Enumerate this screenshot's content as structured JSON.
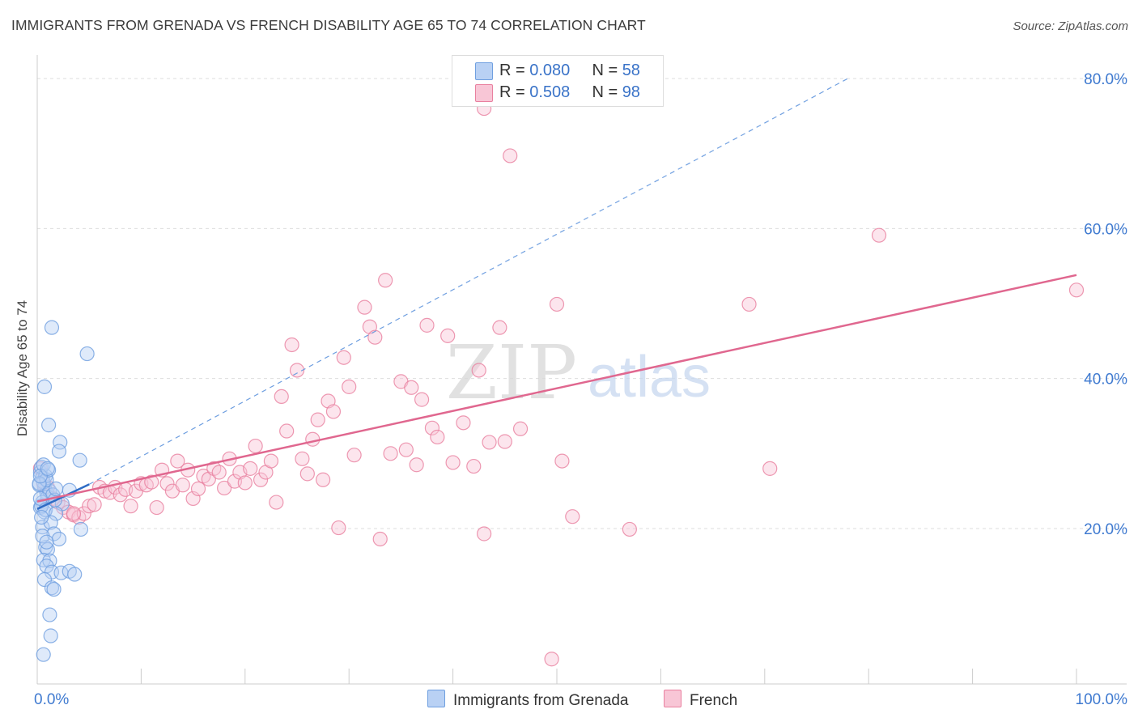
{
  "title": "IMMIGRANTS FROM GRENADA VS FRENCH DISABILITY AGE 65 TO 74 CORRELATION CHART",
  "source": "Source: ZipAtlas.com",
  "watermark": {
    "zip": "ZIP",
    "atlas": "atlas"
  },
  "colors": {
    "blue": "#6f9fe0",
    "blue_fill": "#b9d1f4",
    "blue_line": "#2f6cc5",
    "pink": "#e9809f",
    "pink_fill": "#f8c6d6",
    "pink_line": "#e0678f",
    "axis_text": "#3f7ad0",
    "grid": "#dddddd"
  },
  "legend_top": [
    {
      "r_label": "R = ",
      "r_value": "0.080",
      "n_label": "N = ",
      "n_value": "58"
    },
    {
      "r_label": "R = ",
      "r_value": "0.508",
      "n_label": "N = ",
      "n_value": "98"
    }
  ],
  "chart_data": {
    "type": "scatter",
    "title": "IMMIGRANTS FROM GRENADA VS FRENCH DISABILITY AGE 65 TO 74 CORRELATION CHART",
    "xlabel": "",
    "ylabel": "Disability Age 65 to 74",
    "xlim": [
      0,
      100
    ],
    "ylim": [
      0,
      85
    ],
    "x_tick_labels": [
      "0.0%",
      "100.0%"
    ],
    "y_ticks": [
      20,
      40,
      60,
      80
    ],
    "y_tick_labels": [
      "20.0%",
      "40.0%",
      "60.0%",
      "80.0%"
    ],
    "grid": true,
    "legend_position": "top-center",
    "series": [
      {
        "name": "Immigrants from Grenada",
        "color": "#6f9fe0",
        "points": [
          [
            0.3,
            27.5
          ],
          [
            0.5,
            26.8
          ],
          [
            0.7,
            25.5
          ],
          [
            0.9,
            24.8
          ],
          [
            0.4,
            28.2
          ],
          [
            0.6,
            26.2
          ],
          [
            0.8,
            27.0
          ],
          [
            1.0,
            24.2
          ],
          [
            0.2,
            25.8
          ],
          [
            0.5,
            23.5
          ],
          [
            0.3,
            22.8
          ],
          [
            0.7,
            22.2
          ],
          [
            1.2,
            25.0
          ],
          [
            1.5,
            24.5
          ],
          [
            0.6,
            28.5
          ],
          [
            0.4,
            23.0
          ],
          [
            0.9,
            26.5
          ],
          [
            1.1,
            27.8
          ],
          [
            0.3,
            24.0
          ],
          [
            0.8,
            22.5
          ],
          [
            1.4,
            46.8
          ],
          [
            4.8,
            43.3
          ],
          [
            0.7,
            38.9
          ],
          [
            1.1,
            33.8
          ],
          [
            4.1,
            29.1
          ],
          [
            2.2,
            31.5
          ],
          [
            2.1,
            30.3
          ],
          [
            2.4,
            23.3
          ],
          [
            3.1,
            25.1
          ],
          [
            1.8,
            22.0
          ],
          [
            0.5,
            20.2
          ],
          [
            1.3,
            20.8
          ],
          [
            1.6,
            19.3
          ],
          [
            2.1,
            18.6
          ],
          [
            4.2,
            19.9
          ],
          [
            0.8,
            17.5
          ],
          [
            1.0,
            17.2
          ],
          [
            0.6,
            15.8
          ],
          [
            1.2,
            15.7
          ],
          [
            0.9,
            15.0
          ],
          [
            1.4,
            14.2
          ],
          [
            2.3,
            14.1
          ],
          [
            3.1,
            14.3
          ],
          [
            3.6,
            13.9
          ],
          [
            0.7,
            13.2
          ],
          [
            1.4,
            12.1
          ],
          [
            1.6,
            11.9
          ],
          [
            1.2,
            8.5
          ],
          [
            1.3,
            5.7
          ],
          [
            0.6,
            3.2
          ],
          [
            0.4,
            21.5
          ],
          [
            0.2,
            26.0
          ],
          [
            1.7,
            23.8
          ],
          [
            0.5,
            19.0
          ],
          [
            0.9,
            18.2
          ],
          [
            1.8,
            25.3
          ],
          [
            0.3,
            27.0
          ],
          [
            1.0,
            28.0
          ]
        ],
        "trend_solid": [
          [
            0.0,
            22.6
          ],
          [
            5.0,
            25.9
          ]
        ],
        "trend_dashed": [
          [
            5.0,
            25.9
          ],
          [
            78.0,
            80.0
          ]
        ]
      },
      {
        "name": "French",
        "color": "#e9809f",
        "points": [
          [
            0.3,
            28.0
          ],
          [
            0.6,
            26.0
          ],
          [
            1.0,
            25.5
          ],
          [
            1.5,
            24.0
          ],
          [
            2.0,
            23.5
          ],
          [
            2.5,
            22.8
          ],
          [
            3.0,
            22.2
          ],
          [
            3.5,
            21.8
          ],
          [
            4.0,
            21.5
          ],
          [
            4.5,
            22.0
          ],
          [
            5.0,
            23.0
          ],
          [
            5.5,
            23.2
          ],
          [
            6.0,
            25.5
          ],
          [
            6.5,
            25.0
          ],
          [
            7.0,
            24.8
          ],
          [
            7.5,
            25.5
          ],
          [
            8.0,
            24.5
          ],
          [
            8.5,
            25.2
          ],
          [
            9.0,
            23.0
          ],
          [
            9.5,
            25.0
          ],
          [
            10.0,
            26.0
          ],
          [
            10.5,
            25.8
          ],
          [
            11.0,
            26.2
          ],
          [
            11.5,
            22.8
          ],
          [
            12.0,
            27.8
          ],
          [
            12.5,
            26.0
          ],
          [
            13.0,
            25.0
          ],
          [
            13.5,
            29.0
          ],
          [
            14.0,
            25.8
          ],
          [
            14.5,
            27.8
          ],
          [
            15.0,
            24.0
          ],
          [
            15.5,
            25.3
          ],
          [
            16.0,
            27.0
          ],
          [
            16.5,
            26.6
          ],
          [
            17.0,
            28.0
          ],
          [
            17.5,
            27.5
          ],
          [
            18.0,
            25.4
          ],
          [
            18.5,
            29.3
          ],
          [
            19.0,
            26.3
          ],
          [
            19.5,
            27.5
          ],
          [
            20.0,
            26.1
          ],
          [
            20.5,
            28.0
          ],
          [
            21.0,
            31.0
          ],
          [
            21.5,
            26.5
          ],
          [
            22.0,
            27.5
          ],
          [
            22.5,
            29.0
          ],
          [
            23.0,
            23.5
          ],
          [
            23.5,
            37.6
          ],
          [
            24.0,
            33.0
          ],
          [
            24.5,
            44.5
          ],
          [
            25.0,
            41.1
          ],
          [
            25.5,
            29.3
          ],
          [
            26.0,
            27.3
          ],
          [
            26.5,
            31.9
          ],
          [
            27.0,
            34.5
          ],
          [
            27.5,
            26.5
          ],
          [
            28.0,
            37.0
          ],
          [
            28.5,
            35.6
          ],
          [
            29.0,
            20.1
          ],
          [
            29.5,
            42.8
          ],
          [
            30.0,
            38.9
          ],
          [
            30.5,
            29.8
          ],
          [
            31.5,
            49.5
          ],
          [
            32.0,
            46.9
          ],
          [
            32.5,
            45.5
          ],
          [
            33.0,
            18.6
          ],
          [
            33.5,
            53.1
          ],
          [
            34.0,
            30.0
          ],
          [
            35.0,
            39.6
          ],
          [
            35.5,
            30.5
          ],
          [
            36.0,
            38.8
          ],
          [
            36.5,
            28.5
          ],
          [
            37.0,
            37.2
          ],
          [
            37.5,
            47.1
          ],
          [
            38.0,
            33.4
          ],
          [
            38.5,
            32.2
          ],
          [
            39.5,
            45.7
          ],
          [
            40.0,
            28.8
          ],
          [
            41.0,
            34.1
          ],
          [
            42.0,
            28.3
          ],
          [
            42.5,
            41.1
          ],
          [
            43.0,
            19.3
          ],
          [
            43.5,
            31.5
          ],
          [
            44.5,
            46.8
          ],
          [
            45.0,
            31.6
          ],
          [
            45.5,
            69.7
          ],
          [
            46.5,
            33.3
          ],
          [
            49.5,
            2.6
          ],
          [
            50.0,
            49.9
          ],
          [
            50.5,
            29.0
          ],
          [
            51.5,
            21.6
          ],
          [
            57.0,
            19.9
          ],
          [
            68.5,
            49.9
          ],
          [
            70.5,
            28.0
          ],
          [
            81.0,
            59.1
          ],
          [
            100.0,
            51.8
          ],
          [
            43.0,
            76.0
          ],
          [
            3.5,
            22.0
          ]
        ],
        "trend_solid": [
          [
            0.0,
            23.6
          ],
          [
            100.0,
            53.8
          ]
        ]
      }
    ]
  }
}
